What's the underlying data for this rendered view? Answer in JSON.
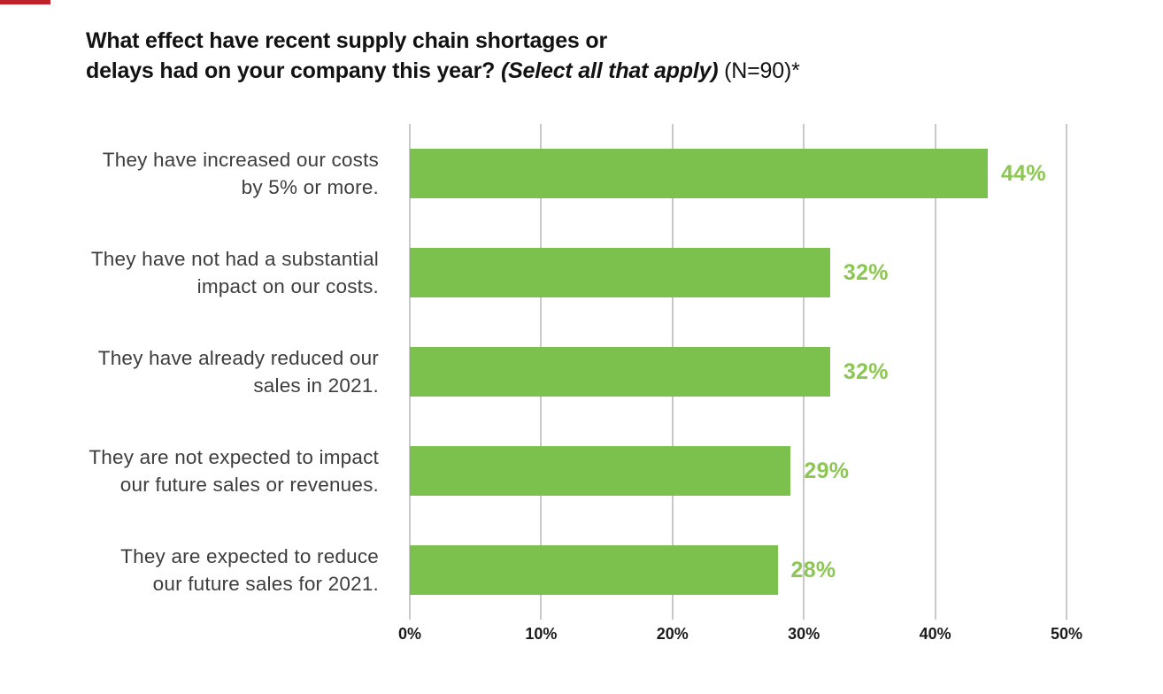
{
  "title": {
    "line1": "What effect have recent supply chain shortages or",
    "line2_main": "delays had on your company this year? ",
    "line2_italic": "(Select all that apply)",
    "line2_note": " (N=90)*"
  },
  "colors": {
    "bar": "#7cc04d",
    "value_label": "#8cc653",
    "grid": "#c9c9c9",
    "category_text": "#3d3d3d",
    "axis_text": "#1b1b1b",
    "title_text": "#121212",
    "accent_mark": "#c0222c"
  },
  "chart_data": {
    "type": "bar",
    "orientation": "horizontal",
    "title": "What effect have recent supply chain shortages or delays had on your company this year? (Select all that apply) (N=90)*",
    "categories": [
      "They have increased our costs by 5% or more.",
      "They have not had a substantial impact on our costs.",
      "They have already reduced our sales in 2021.",
      "They are not expected to impact our future sales or revenues.",
      "They are expected to reduce our future sales for 2021."
    ],
    "category_display_lines": [
      [
        "They have increased our costs",
        "by 5% or more."
      ],
      [
        "They have not had a substantial",
        "impact on our costs."
      ],
      [
        "They have already reduced our",
        "sales in 2021."
      ],
      [
        "They are not expected to impact",
        "our future sales or revenues."
      ],
      [
        "They are expected to reduce",
        "our future sales for 2021."
      ]
    ],
    "values": [
      44,
      32,
      32,
      29,
      28
    ],
    "value_labels": [
      "44%",
      "32%",
      "32%",
      "29%",
      "28%"
    ],
    "xlim": [
      0,
      50
    ],
    "x_tick_labels": [
      "0%",
      "10%",
      "20%",
      "30%",
      "40%",
      "50%"
    ],
    "grid": true,
    "legend": false,
    "bar_color": "#7cc04d"
  }
}
